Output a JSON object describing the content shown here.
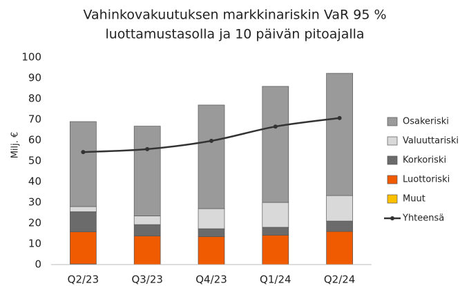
{
  "chart_data": {
    "type": "bar",
    "title": [
      "Vahinkovakuutuksen markkinariskin VaR 95 %",
      "luottamustasolla ja 10 päivän pitoajalla"
    ],
    "y_label": "Milj. €",
    "categories": [
      "Q2/23",
      "Q3/23",
      "Q4/23",
      "Q1/24",
      "Q2/24"
    ],
    "stacked": true,
    "series": [
      {
        "name": "Osakeriski",
        "color": "#9a9a9a",
        "values": [
          41,
          43.3,
          50,
          56,
          59
        ]
      },
      {
        "name": "Valuuttariski",
        "color": "#d9d9d9",
        "values": [
          2.5,
          4.2,
          9.7,
          12,
          12.3
        ]
      },
      {
        "name": "Korkoriski",
        "color": "#6b6b6b",
        "values": [
          9.7,
          5.5,
          3.8,
          3.8,
          5
        ]
      },
      {
        "name": "Luottoriski",
        "color": "#f05a00",
        "values": [
          15.5,
          13.8,
          13.5,
          14.2,
          16
        ]
      },
      {
        "name": "Muut",
        "color": "#ffc000",
        "values": [
          0.3,
          0,
          0,
          0,
          0
        ]
      },
      {
        "name": "Yhteensä",
        "type": "line",
        "color": "#333333",
        "values": [
          54.3,
          55.7,
          59.7,
          66.6,
          70.7
        ]
      }
    ],
    "ylim": [
      0,
      100
    ],
    "yticks": [
      0,
      10,
      20,
      30,
      40,
      50,
      60,
      70,
      80,
      90,
      100
    ],
    "grid": false,
    "legend": "right"
  }
}
